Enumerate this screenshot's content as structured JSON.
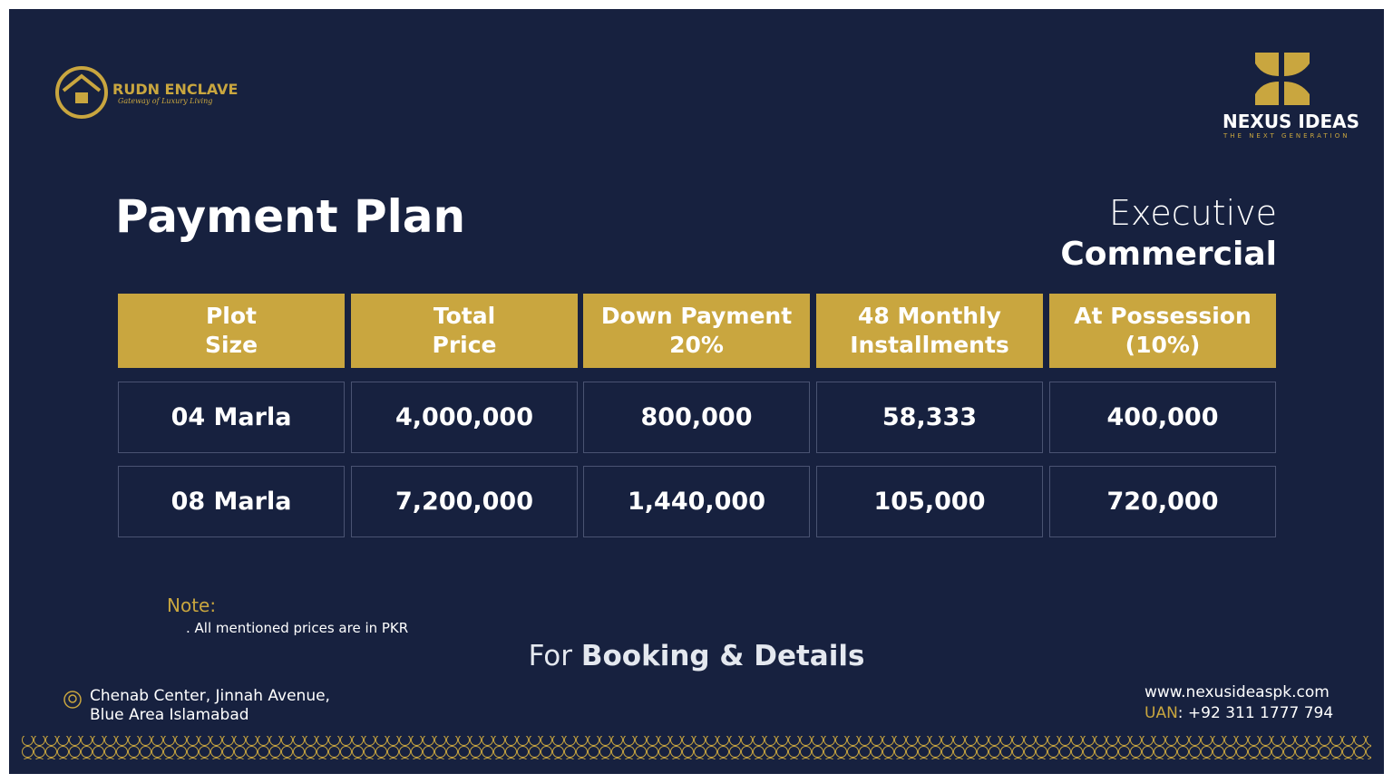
{
  "brand": {
    "name": "RUDN ENCLAVE",
    "tagline": "Gateway of Luxury Living"
  },
  "partner": {
    "name": "NEXUS IDEAS",
    "tagline": "THE NEXT GENERATION"
  },
  "title": "Payment Plan",
  "category": {
    "line1": "Executive",
    "line2": "Commercial"
  },
  "table": {
    "header": [
      [
        "Plot",
        "Size"
      ],
      [
        "Total",
        "Price"
      ],
      [
        "Down Payment",
        "20%"
      ],
      [
        "48 Monthly",
        "Installments"
      ],
      [
        "At Possession",
        "(10%)"
      ]
    ],
    "rows": [
      [
        "04 Marla",
        "4,000,000",
        "800,000",
        "58,333",
        "400,000"
      ],
      [
        "08 Marla",
        "7,200,000",
        "1,440,000",
        "105,000",
        "720,000"
      ]
    ]
  },
  "note": {
    "label": "Note:",
    "text": ". All mentioned prices are in PKR"
  },
  "booking": {
    "prefix": "For",
    "main": "Booking & Details"
  },
  "address": {
    "line1": "Chenab Center, Jinnah Avenue,",
    "line2": "Blue Area Islamabad"
  },
  "contact": {
    "website": "www.nexusideaspk.com",
    "uan_label": "UAN",
    "uan": ": +92 311 1777 794"
  }
}
